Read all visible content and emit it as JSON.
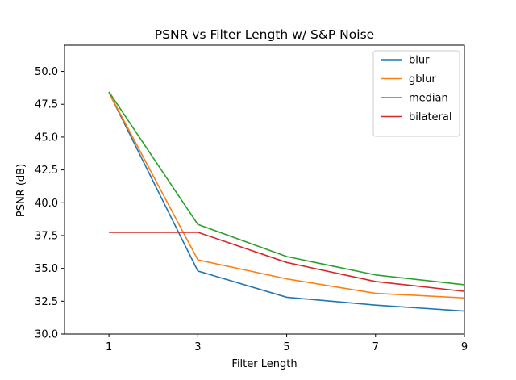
{
  "chart_data": {
    "type": "line",
    "title": "PSNR vs Filter Length w/ S&P Noise",
    "xlabel": "Filter Length",
    "ylabel": "PSNR (dB)",
    "x": [
      1,
      3,
      5,
      7,
      9
    ],
    "xlim": [
      0,
      9
    ],
    "ylim": [
      30.0,
      52.0
    ],
    "xticks": [
      "1",
      "3",
      "5",
      "7",
      "9"
    ],
    "yticks": [
      "30.0",
      "32.5",
      "35.0",
      "37.5",
      "40.0",
      "42.5",
      "45.0",
      "47.5",
      "50.0"
    ],
    "grid": false,
    "legend_position": "top-right",
    "series": [
      {
        "name": "blur",
        "color": "#1f77b4",
        "values": [
          48.4,
          34.8,
          32.8,
          32.2,
          31.75
        ]
      },
      {
        "name": "gblur",
        "color": "#ff7f0e",
        "values": [
          48.4,
          35.65,
          34.2,
          33.1,
          32.75
        ]
      },
      {
        "name": "median",
        "color": "#2ca02c",
        "values": [
          48.45,
          38.35,
          35.9,
          34.5,
          33.75
        ]
      },
      {
        "name": "bilateral",
        "color": "#d62728",
        "values": [
          37.75,
          37.75,
          35.45,
          34.0,
          33.25
        ]
      }
    ]
  }
}
